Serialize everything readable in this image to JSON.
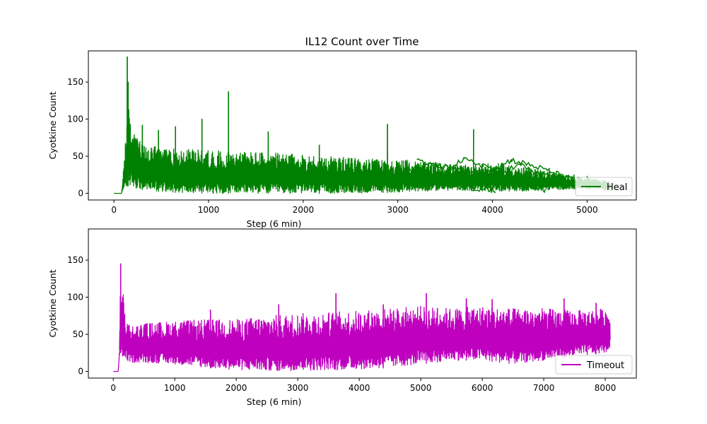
{
  "figure": {
    "title": "IL12 Count over Time"
  },
  "chart_data": [
    {
      "type": "line",
      "title": "IL12 Count over Time",
      "xlabel": "Step (6 min)",
      "ylabel": "Cyotkine Count",
      "xlim": [
        -270,
        5520
      ],
      "ylim": [
        -9,
        192
      ],
      "xticks": [
        0,
        1000,
        2000,
        3000,
        4000,
        5000
      ],
      "yticks": [
        0,
        50,
        100,
        150
      ],
      "legend": {
        "position": "lower right"
      },
      "series": [
        {
          "name": "Heal",
          "color": "#008000",
          "envelope": {
            "x": [
              0,
              80,
              100,
              130,
              150,
              200,
              300,
              500,
              700,
              1000,
              1200,
              1500,
              2000,
              2500,
              2900,
              3100,
              3300,
              3500,
              3700,
              3900,
              4100,
              4300,
              4500,
              4700,
              4900,
              5100,
              5250
            ],
            "upper": [
              0,
              0,
              30,
              100,
              120,
              85,
              65,
              62,
              60,
              58,
              57,
              56,
              52,
              48,
              45,
              45,
              42,
              40,
              38,
              40,
              40,
              35,
              32,
              28,
              22,
              20,
              15
            ],
            "lower": [
              0,
              0,
              5,
              10,
              10,
              8,
              5,
              2,
              1,
              0,
              0,
              0,
              0,
              0,
              1,
              2,
              3,
              4,
              4,
              3,
              3,
              3,
              4,
              5,
              6,
              6,
              6
            ]
          },
          "spikes": [
            {
              "x": 140,
              "y": 184
            },
            {
              "x": 150,
              "y": 150
            },
            {
              "x": 300,
              "y": 92
            },
            {
              "x": 470,
              "y": 85
            },
            {
              "x": 650,
              "y": 90
            },
            {
              "x": 930,
              "y": 100
            },
            {
              "x": 1210,
              "y": 137
            },
            {
              "x": 1630,
              "y": 83
            },
            {
              "x": 2170,
              "y": 65
            },
            {
              "x": 2890,
              "y": 93
            },
            {
              "x": 3800,
              "y": 86
            },
            {
              "x": 4860,
              "y": 25
            },
            {
              "x": 5000,
              "y": 23
            }
          ],
          "tail_lines": [
            {
              "x": [
                3000,
                3200,
                3400,
                3600,
                3800,
                3950,
                4030
              ],
              "y": [
                30,
                22,
                15,
                10,
                7,
                5,
                4
              ]
            },
            {
              "x": [
                3100,
                3300,
                3500,
                3700,
                3900,
                4100,
                4300,
                4450,
                4560
              ],
              "y": [
                35,
                28,
                25,
                20,
                15,
                12,
                8,
                6,
                5
              ]
            },
            {
              "x": [
                3200,
                3400,
                3600,
                3800,
                4000,
                4200,
                4400,
                4600,
                4800,
                5000,
                5100
              ],
              "y": [
                45,
                38,
                33,
                28,
                32,
                45,
                38,
                30,
                20,
                12,
                10
              ]
            },
            {
              "x": [
                3300,
                3500,
                3700,
                3900,
                4100,
                4300,
                4500,
                4700,
                4900,
                5100,
                5250
              ],
              "y": [
                40,
                35,
                45,
                38,
                30,
                38,
                25,
                22,
                18,
                10,
                6
              ]
            }
          ]
        }
      ]
    },
    {
      "type": "line",
      "title": "",
      "xlabel": "Step (6 min)",
      "ylabel": "Cyotkine Count",
      "xlim": [
        -405,
        8505
      ],
      "ylim": [
        -9,
        192
      ],
      "xticks": [
        0,
        1000,
        2000,
        3000,
        4000,
        5000,
        6000,
        7000,
        8000
      ],
      "yticks": [
        0,
        50,
        100,
        150
      ],
      "legend": {
        "position": "lower right"
      },
      "series": [
        {
          "name": "Timeout",
          "color": "#bf00bf",
          "envelope": {
            "x": [
              0,
              80,
              100,
              120,
              140,
              200,
              300,
              500,
              1000,
              1500,
              2000,
              2500,
              3000,
              3500,
              4000,
              4500,
              5000,
              5500,
              6000,
              6500,
              7000,
              7500,
              8000,
              8080
            ],
            "upper": [
              0,
              0,
              30,
              140,
              120,
              75,
              62,
              65,
              68,
              70,
              70,
              75,
              78,
              80,
              82,
              85,
              88,
              85,
              88,
              85,
              85,
              82,
              85,
              80
            ],
            "lower": [
              0,
              0,
              20,
              25,
              22,
              15,
              12,
              12,
              10,
              5,
              2,
              1,
              1,
              2,
              3,
              5,
              10,
              15,
              15,
              10,
              15,
              20,
              25,
              30
            ]
          },
          "spikes": [
            {
              "x": 120,
              "y": 145
            },
            {
              "x": 150,
              "y": 100
            },
            {
              "x": 1580,
              "y": 83
            },
            {
              "x": 2690,
              "y": 90
            },
            {
              "x": 3620,
              "y": 105
            },
            {
              "x": 4390,
              "y": 90
            },
            {
              "x": 5090,
              "y": 105
            },
            {
              "x": 5270,
              "y": 85
            },
            {
              "x": 5740,
              "y": 98
            },
            {
              "x": 6160,
              "y": 97
            },
            {
              "x": 7330,
              "y": 98
            },
            {
              "x": 7850,
              "y": 92
            }
          ]
        }
      ]
    }
  ]
}
